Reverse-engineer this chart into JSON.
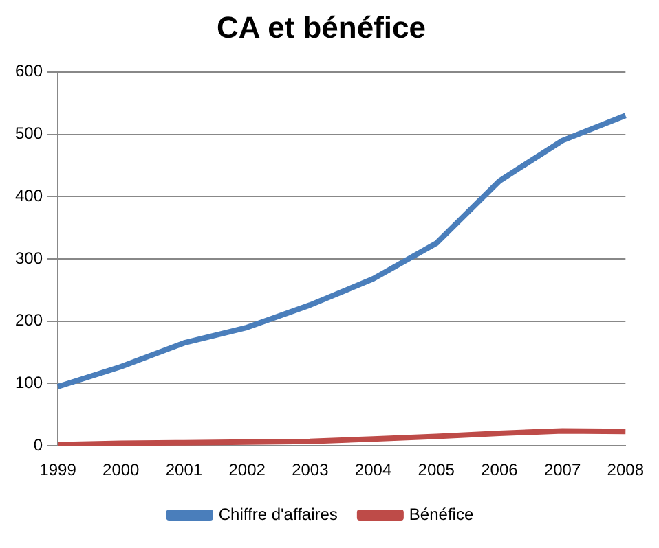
{
  "chart_data": {
    "type": "line",
    "title": "CA et bénéfice",
    "categories": [
      "1999",
      "2000",
      "2001",
      "2002",
      "2003",
      "2004",
      "2005",
      "2006",
      "2007",
      "2008"
    ],
    "series": [
      {
        "name": "Chiffre d'affaires",
        "color": "#4a7ebb",
        "values": [
          95,
          127,
          165,
          190,
          226,
          268,
          325,
          425,
          490,
          530
        ]
      },
      {
        "name": "Bénéfice",
        "color": "#be4b48",
        "values": [
          2,
          4,
          5,
          6,
          7,
          11,
          15,
          20,
          24,
          23
        ]
      }
    ],
    "ylim": [
      0,
      600
    ],
    "yticks": [
      0,
      100,
      200,
      300,
      400,
      500,
      600
    ],
    "grid": "y",
    "legend": "bottom",
    "marker": "none",
    "line_style": "solid"
  }
}
